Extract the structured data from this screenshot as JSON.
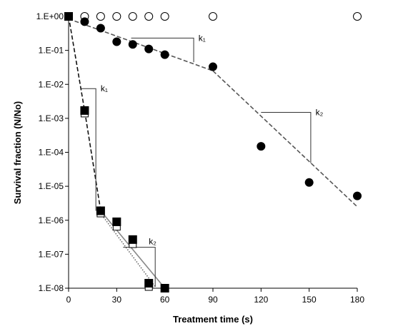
{
  "chart_data": {
    "type": "scatter",
    "xlabel": "Treatment time (s)",
    "ylabel": "Survival fraction (N/No)",
    "xlim": [
      0,
      180
    ],
    "ylim": [
      1e-08,
      1
    ],
    "y_scale": "log",
    "grid": false,
    "legend": "none",
    "x_ticks": [
      0,
      30,
      60,
      90,
      120,
      150,
      180
    ],
    "x_tick_labels": [
      "0",
      "30",
      "60",
      "90",
      "120",
      "150",
      "180"
    ],
    "y_ticks": [
      1,
      0.1,
      0.01,
      0.001,
      0.0001,
      1e-05,
      1e-06,
      1e-07,
      1e-08
    ],
    "y_tick_labels": [
      "1.E+00",
      "1.E-01",
      "1.E-02",
      "1.E-03",
      "1.E-04",
      "1.E-05",
      "1.E-06",
      "1.E-07",
      "1.E-08"
    ],
    "series": [
      {
        "marker": "circle-open",
        "color": "#000000",
        "x": [
          0,
          10,
          20,
          30,
          40,
          50,
          60,
          90,
          180
        ],
        "y": [
          1,
          1,
          1,
          1,
          1,
          1,
          1,
          1,
          1
        ]
      },
      {
        "marker": "circle-filled",
        "color": "#000000",
        "x": [
          0,
          10,
          20,
          30,
          40,
          50,
          60,
          90,
          120,
          150,
          180
        ],
        "y": [
          1,
          0.7,
          0.45,
          0.18,
          0.15,
          0.11,
          0.075,
          0.033,
          0.00015,
          1.3e-05,
          5.2e-06
        ]
      },
      {
        "marker": "square-open",
        "color": "#000000",
        "x": [
          0,
          10,
          20,
          30,
          40,
          50
        ],
        "y": [
          1,
          0.0014,
          1.6e-06,
          6.5e-07,
          2e-07,
          1.1e-08
        ]
      },
      {
        "marker": "square-filled",
        "color": "#000000",
        "x": [
          0,
          10,
          20,
          30,
          40,
          50,
          60
        ],
        "y": [
          1,
          0.0017,
          1.9e-06,
          9e-07,
          2.7e-07,
          1.4e-08,
          1e-08
        ]
      }
    ],
    "fit_lines": [
      {
        "style": "dashed",
        "color": "#555555",
        "x": [
          0,
          90
        ],
        "y": [
          0.85,
          0.025
        ]
      },
      {
        "style": "dashed",
        "color": "#555555",
        "x": [
          90,
          180
        ],
        "y": [
          0.025,
          2.5e-06
        ]
      },
      {
        "style": "dashed",
        "color": "#111111",
        "x": [
          0,
          10,
          20
        ],
        "y": [
          1,
          0.0017,
          1.9e-06
        ]
      },
      {
        "style": "solid",
        "color": "#888888",
        "x": [
          20,
          60
        ],
        "y": [
          1.9e-06,
          1e-08
        ]
      },
      {
        "style": "dotted",
        "color": "#666666",
        "x": [
          20,
          54
        ],
        "y": [
          1.6e-06,
          1.1e-08
        ]
      }
    ],
    "annotations": [
      {
        "text": "k₁",
        "bracket_x": [
          39,
          78
        ],
        "bracket_y": [
          0.23,
          0.045
        ],
        "label_x": 81,
        "label_y": 0.23
      },
      {
        "text": "k₂",
        "bracket_x": [
          120,
          151
        ],
        "bracket_y": [
          0.0015,
          4.8e-05
        ],
        "label_x": 154,
        "label_y": 0.0015
      },
      {
        "text": "k₁",
        "bracket_x": [
          8,
          17
        ],
        "bracket_y": [
          0.0075,
          1.9e-06
        ],
        "label_x": 20,
        "label_y": 0.0075
      },
      {
        "text": "k₂",
        "bracket_x": [
          34,
          54
        ],
        "bracket_y": [
          1.6e-07,
          1.1e-08
        ],
        "label_x": 50,
        "label_y": 2.4e-07
      }
    ]
  }
}
